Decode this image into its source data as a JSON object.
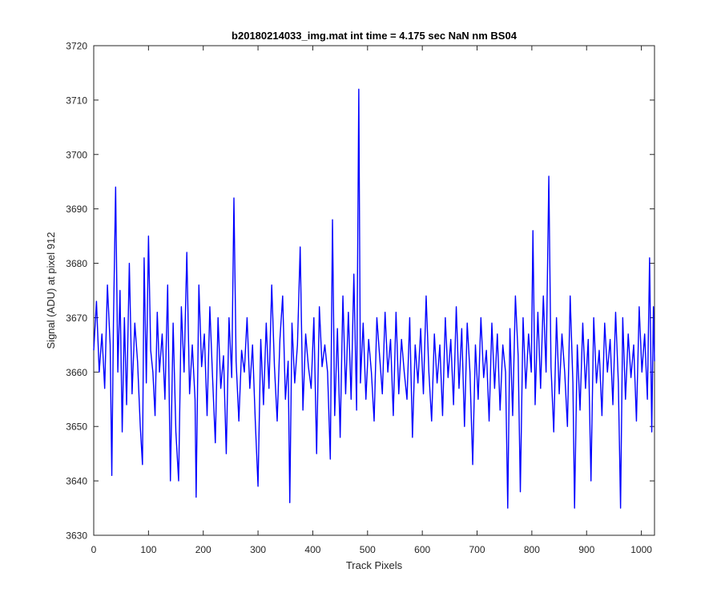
{
  "chart_data": {
    "type": "line",
    "title": "b20180214033_img.mat int time = 4.175 sec  NaN nm BS04",
    "xlabel": "Track Pixels",
    "ylabel": "Signal (ADU) at pixel 912",
    "xlim": [
      0,
      1024
    ],
    "ylim": [
      3630,
      3720
    ],
    "xticks": [
      0,
      100,
      200,
      300,
      400,
      500,
      600,
      700,
      800,
      900,
      1000
    ],
    "yticks": [
      3630,
      3640,
      3650,
      3660,
      3670,
      3680,
      3690,
      3700,
      3710,
      3720
    ],
    "grid": false,
    "legend": "none",
    "series": [
      {
        "color": "#0000ff",
        "points": [
          [
            0,
            3664
          ],
          [
            5,
            3673
          ],
          [
            10,
            3660
          ],
          [
            15,
            3667
          ],
          [
            20,
            3657
          ],
          [
            25,
            3676
          ],
          [
            30,
            3665
          ],
          [
            33,
            3641
          ],
          [
            36,
            3669
          ],
          [
            40,
            3694
          ],
          [
            44,
            3660
          ],
          [
            48,
            3675
          ],
          [
            52,
            3649
          ],
          [
            56,
            3670
          ],
          [
            60,
            3654
          ],
          [
            65,
            3680
          ],
          [
            70,
            3656
          ],
          [
            75,
            3669
          ],
          [
            80,
            3662
          ],
          [
            85,
            3650
          ],
          [
            89,
            3643
          ],
          [
            92,
            3681
          ],
          [
            96,
            3658
          ],
          [
            100,
            3685
          ],
          [
            104,
            3664
          ],
          [
            108,
            3660
          ],
          [
            112,
            3652
          ],
          [
            116,
            3671
          ],
          [
            120,
            3660
          ],
          [
            125,
            3667
          ],
          [
            130,
            3655
          ],
          [
            135,
            3676
          ],
          [
            140,
            3640
          ],
          [
            145,
            3669
          ],
          [
            150,
            3649
          ],
          [
            155,
            3640
          ],
          [
            160,
            3672
          ],
          [
            165,
            3660
          ],
          [
            170,
            3682
          ],
          [
            175,
            3656
          ],
          [
            180,
            3665
          ],
          [
            185,
            3655
          ],
          [
            187,
            3637
          ],
          [
            192,
            3676
          ],
          [
            197,
            3661
          ],
          [
            202,
            3667
          ],
          [
            207,
            3652
          ],
          [
            212,
            3672
          ],
          [
            217,
            3659
          ],
          [
            222,
            3647
          ],
          [
            227,
            3670
          ],
          [
            232,
            3657
          ],
          [
            237,
            3663
          ],
          [
            242,
            3645
          ],
          [
            247,
            3670
          ],
          [
            252,
            3659
          ],
          [
            256,
            3692
          ],
          [
            260,
            3662
          ],
          [
            265,
            3651
          ],
          [
            270,
            3664
          ],
          [
            275,
            3660
          ],
          [
            280,
            3670
          ],
          [
            285,
            3657
          ],
          [
            290,
            3665
          ],
          [
            295,
            3651
          ],
          [
            300,
            3639
          ],
          [
            305,
            3666
          ],
          [
            310,
            3654
          ],
          [
            315,
            3669
          ],
          [
            320,
            3657
          ],
          [
            325,
            3676
          ],
          [
            330,
            3661
          ],
          [
            335,
            3651
          ],
          [
            340,
            3666
          ],
          [
            345,
            3674
          ],
          [
            350,
            3655
          ],
          [
            355,
            3662
          ],
          [
            358,
            3636
          ],
          [
            362,
            3669
          ],
          [
            367,
            3658
          ],
          [
            372,
            3665
          ],
          [
            377,
            3683
          ],
          [
            382,
            3653
          ],
          [
            387,
            3667
          ],
          [
            392,
            3661
          ],
          [
            397,
            3657
          ],
          [
            402,
            3670
          ],
          [
            407,
            3645
          ],
          [
            412,
            3672
          ],
          [
            417,
            3661
          ],
          [
            422,
            3665
          ],
          [
            427,
            3660
          ],
          [
            432,
            3644
          ],
          [
            436,
            3688
          ],
          [
            440,
            3652
          ],
          [
            445,
            3668
          ],
          [
            450,
            3648
          ],
          [
            455,
            3674
          ],
          [
            460,
            3656
          ],
          [
            465,
            3671
          ],
          [
            470,
            3655
          ],
          [
            475,
            3678
          ],
          [
            480,
            3653
          ],
          [
            484,
            3712
          ],
          [
            487,
            3658
          ],
          [
            492,
            3669
          ],
          [
            497,
            3655
          ],
          [
            502,
            3666
          ],
          [
            507,
            3660
          ],
          [
            512,
            3651
          ],
          [
            517,
            3670
          ],
          [
            522,
            3663
          ],
          [
            527,
            3656
          ],
          [
            532,
            3671
          ],
          [
            537,
            3660
          ],
          [
            542,
            3666
          ],
          [
            547,
            3652
          ],
          [
            552,
            3671
          ],
          [
            557,
            3656
          ],
          [
            562,
            3666
          ],
          [
            567,
            3660
          ],
          [
            572,
            3655
          ],
          [
            577,
            3670
          ],
          [
            582,
            3648
          ],
          [
            587,
            3665
          ],
          [
            592,
            3658
          ],
          [
            597,
            3668
          ],
          [
            602,
            3656
          ],
          [
            607,
            3674
          ],
          [
            612,
            3660
          ],
          [
            617,
            3651
          ],
          [
            622,
            3667
          ],
          [
            627,
            3658
          ],
          [
            632,
            3665
          ],
          [
            637,
            3652
          ],
          [
            642,
            3670
          ],
          [
            647,
            3659
          ],
          [
            652,
            3666
          ],
          [
            657,
            3654
          ],
          [
            662,
            3672
          ],
          [
            667,
            3657
          ],
          [
            672,
            3668
          ],
          [
            677,
            3650
          ],
          [
            682,
            3669
          ],
          [
            687,
            3660
          ],
          [
            692,
            3643
          ],
          [
            697,
            3665
          ],
          [
            702,
            3655
          ],
          [
            707,
            3670
          ],
          [
            712,
            3659
          ],
          [
            717,
            3664
          ],
          [
            722,
            3651
          ],
          [
            727,
            3669
          ],
          [
            732,
            3657
          ],
          [
            737,
            3667
          ],
          [
            742,
            3653
          ],
          [
            747,
            3665
          ],
          [
            752,
            3660
          ],
          [
            756,
            3635
          ],
          [
            760,
            3668
          ],
          [
            765,
            3652
          ],
          [
            770,
            3674
          ],
          [
            775,
            3663
          ],
          [
            779,
            3638
          ],
          [
            784,
            3670
          ],
          [
            789,
            3657
          ],
          [
            794,
            3667
          ],
          [
            799,
            3660
          ],
          [
            802,
            3686
          ],
          [
            806,
            3654
          ],
          [
            811,
            3671
          ],
          [
            816,
            3657
          ],
          [
            821,
            3674
          ],
          [
            826,
            3660
          ],
          [
            831,
            3696
          ],
          [
            835,
            3661
          ],
          [
            840,
            3649
          ],
          [
            845,
            3670
          ],
          [
            850,
            3656
          ],
          [
            855,
            3667
          ],
          [
            860,
            3660
          ],
          [
            865,
            3650
          ],
          [
            870,
            3674
          ],
          [
            875,
            3658
          ],
          [
            878,
            3635
          ],
          [
            883,
            3665
          ],
          [
            888,
            3653
          ],
          [
            893,
            3669
          ],
          [
            898,
            3657
          ],
          [
            903,
            3666
          ],
          [
            908,
            3640
          ],
          [
            913,
            3670
          ],
          [
            918,
            3658
          ],
          [
            923,
            3664
          ],
          [
            928,
            3652
          ],
          [
            933,
            3669
          ],
          [
            938,
            3660
          ],
          [
            943,
            3666
          ],
          [
            948,
            3654
          ],
          [
            953,
            3671
          ],
          [
            958,
            3658
          ],
          [
            962,
            3635
          ],
          [
            966,
            3670
          ],
          [
            971,
            3655
          ],
          [
            976,
            3667
          ],
          [
            981,
            3659
          ],
          [
            986,
            3665
          ],
          [
            991,
            3651
          ],
          [
            996,
            3672
          ],
          [
            1001,
            3660
          ],
          [
            1006,
            3667
          ],
          [
            1011,
            3655
          ],
          [
            1015,
            3681
          ],
          [
            1019,
            3649
          ],
          [
            1022,
            3672
          ],
          [
            1024,
            3662
          ]
        ]
      }
    ]
  }
}
